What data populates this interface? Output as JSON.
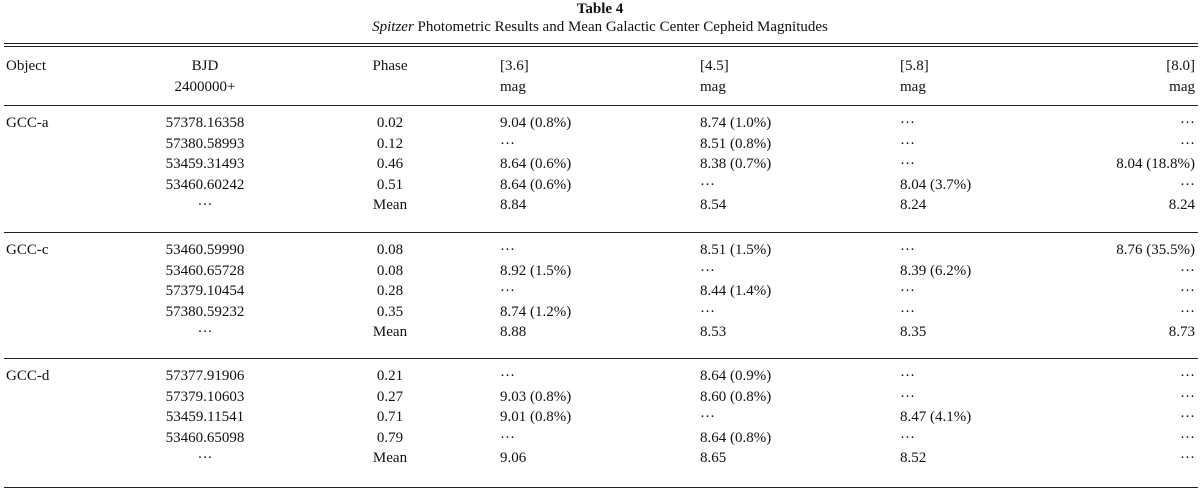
{
  "caption": {
    "label": "Table 4",
    "title_italic": "Spitzer",
    "title_rest": " Photometric Results and Mean Galactic Center Cepheid Magnitudes"
  },
  "headers": {
    "object": "Object",
    "bjd_line1": "BJD",
    "bjd_line2": "2400000+",
    "phase": "Phase",
    "c36_line1": "[3.6]",
    "c36_line2": "mag",
    "c45_line1": "[4.5]",
    "c45_line2": "mag",
    "c58_line1": "[5.8]",
    "c58_line2": "mag",
    "c80_line1": "[8.0]",
    "c80_line2": "mag"
  },
  "groups": [
    {
      "object": "GCC-a",
      "rows": [
        [
          "57378.16358",
          "0.02",
          "9.04 (0.8%)",
          "8.74 (1.0%)",
          "···",
          "···"
        ],
        [
          "57380.58993",
          "0.12",
          "···",
          "8.51 (0.8%)",
          "···",
          "···"
        ],
        [
          "53459.31493",
          "0.46",
          "8.64 (0.6%)",
          "8.38 (0.7%)",
          "···",
          "8.04 (18.8%)"
        ],
        [
          "53460.60242",
          "0.51",
          "8.64 (0.6%)",
          "···",
          "8.04 (3.7%)",
          "···"
        ],
        [
          "···",
          "Mean",
          "8.84",
          "8.54",
          "8.24",
          "8.24"
        ]
      ]
    },
    {
      "object": "GCC-c",
      "rows": [
        [
          "53460.59990",
          "0.08",
          "···",
          "8.51 (1.5%)",
          "···",
          "8.76 (35.5%)"
        ],
        [
          "53460.65728",
          "0.08",
          "8.92 (1.5%)",
          "···",
          "8.39 (6.2%)",
          "···"
        ],
        [
          "57379.10454",
          "0.28",
          "···",
          "8.44 (1.4%)",
          "···",
          "···"
        ],
        [
          "57380.59232",
          "0.35",
          "8.74 (1.2%)",
          "···",
          "···",
          "···"
        ],
        [
          "···",
          "Mean",
          "8.88",
          "8.53",
          "8.35",
          "8.73"
        ]
      ]
    },
    {
      "object": "GCC-d",
      "rows": [
        [
          "57377.91906",
          "0.21",
          "···",
          "8.64 (0.9%)",
          "···",
          "···"
        ],
        [
          "57379.10603",
          "0.27",
          "9.03 (0.8%)",
          "8.60 (0.8%)",
          "···",
          "···"
        ],
        [
          "53459.11541",
          "0.71",
          "9.01 (0.8%)",
          "···",
          "8.47 (4.1%)",
          "···"
        ],
        [
          "53460.65098",
          "0.79",
          "···",
          "8.64 (0.8%)",
          "···",
          "···"
        ],
        [
          "···",
          "Mean",
          "9.06",
          "8.65",
          "8.52",
          "···"
        ]
      ]
    }
  ]
}
